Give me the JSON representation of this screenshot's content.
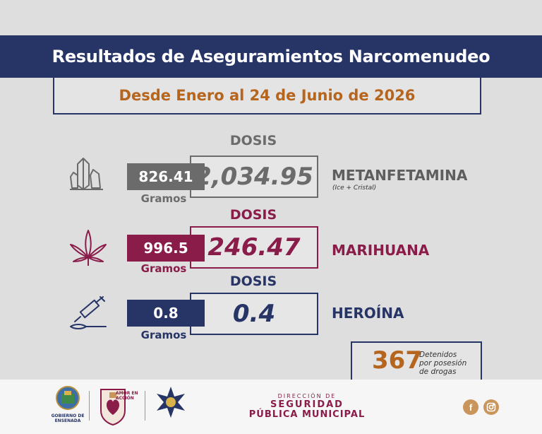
{
  "header": {
    "title": "Resultados de Aseguramientos Narcomenudeo",
    "period": "Desde Enero al 24 de Junio de 2026"
  },
  "dosis_label": "DOSIS",
  "grams_label": "Gramos",
  "rows": [
    {
      "grams": "826.41",
      "doses": "2,034.95",
      "name": "METANFETAMINA",
      "subtitle": "(Ice + Cristal)",
      "icon": "crystal-icon",
      "color": "#6b6b6b",
      "name_color": "#5e5e5e"
    },
    {
      "grams": "996.5",
      "doses": "246.47",
      "name": "MARIHUANA",
      "subtitle": "",
      "icon": "cannabis-leaf-icon",
      "color": "#8a1c4a",
      "name_color": "#8a1c4a"
    },
    {
      "grams": "0.8",
      "doses": "0.4",
      "name": "HEROÍNA",
      "subtitle": "",
      "icon": "syringe-spoon-icon",
      "color": "#273466",
      "name_color": "#273466"
    }
  ],
  "detained": {
    "count": "367",
    "line1": "Detenidos",
    "line2": "por posesión",
    "line3": "de drogas"
  },
  "footer": {
    "gov_name1": "GOBIERNO DE",
    "gov_name2": "ENSENADA",
    "slogan": "AMOR EN ACCIÓN",
    "dir_top": "DIRECCIÓN DE",
    "dir_line1": "SEGURIDAD",
    "dir_line2": "PÚBLICA MUNICIPAL",
    "icons": [
      "city-shield-icon",
      "heart-crest-icon",
      "police-star-icon",
      "facebook-icon",
      "instagram-icon"
    ]
  },
  "colors": {
    "navy": "#273466",
    "orange": "#b5651d",
    "gray": "#6b6b6b",
    "maroon": "#8a1c4a",
    "background": "#dedede"
  }
}
